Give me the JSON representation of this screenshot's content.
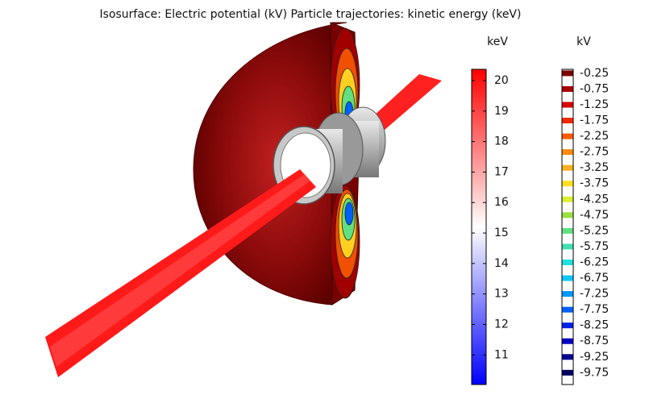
{
  "title": "Isosurface: Electric potential (kV) Particle trajectories: kinetic energy (keV)",
  "colorbars": [
    {
      "unit": "keV",
      "range": [
        10.03,
        20.37
      ],
      "ticks": [
        20,
        19,
        18,
        17,
        16,
        15,
        14,
        13,
        12,
        11
      ],
      "colors": [
        "#ff0000",
        "#ffffff",
        "#0000ff"
      ]
    },
    {
      "unit": "kV",
      "levels": [
        -0.25,
        -0.75,
        -1.25,
        -1.75,
        -2.25,
        -2.75,
        -3.25,
        -3.75,
        -4.25,
        -4.75,
        -5.25,
        -5.75,
        -6.25,
        -6.75,
        -7.25,
        -7.75,
        -8.25,
        -8.75,
        -9.25,
        -9.75
      ],
      "colors": [
        "#7a0000",
        "#a80000",
        "#d80000",
        "#f02800",
        "#ff5a00",
        "#ff8a10",
        "#ffb020",
        "#ffe020",
        "#d8f030",
        "#98e040",
        "#60e080",
        "#40e0b0",
        "#20e0e0",
        "#10c8ff",
        "#0098ff",
        "#0060ff",
        "#0020e8",
        "#0000c0",
        "#000090",
        "#000060"
      ]
    }
  ]
}
